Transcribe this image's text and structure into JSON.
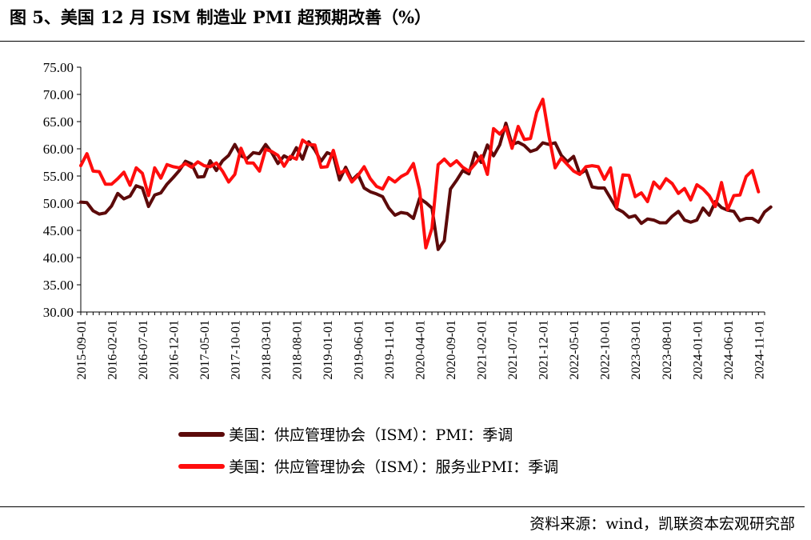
{
  "title": "图 5、美国 12 月 ISM 制造业 PMI 超预期改善（%）",
  "source": "资料来源：wind，凯联资本宏观研究部",
  "chart_data": {
    "type": "line",
    "ylim": [
      30,
      75
    ],
    "yticks": [
      "30.00",
      "35.00",
      "40.00",
      "45.00",
      "50.00",
      "55.00",
      "60.00",
      "65.00",
      "70.00",
      "75.00"
    ],
    "xticks": [
      "2015-09-01",
      "2016-02-01",
      "2016-07-01",
      "2016-12-01",
      "2017-05-01",
      "2017-10-01",
      "2018-03-01",
      "2018-08-01",
      "2019-01-01",
      "2019-06-01",
      "2019-11-01",
      "2020-04-01",
      "2020-09-01",
      "2021-02-01",
      "2021-07-01",
      "2021-12-01",
      "2022-05-01",
      "2022-10-01",
      "2023-03-01",
      "2023-08-01",
      "2024-01-01",
      "2024-06-01",
      "2024-11-01"
    ],
    "start": "2015-09",
    "end": "2024-12",
    "series": [
      {
        "name": "美国：供应管理协会（ISM）：PMI：季调",
        "color": "#5c0a0a",
        "values": [
          50.2,
          50.1,
          48.6,
          48.0,
          48.2,
          49.5,
          51.8,
          50.8,
          51.3,
          53.2,
          52.8,
          49.4,
          51.5,
          51.9,
          53.5,
          54.7,
          56.0,
          57.7,
          57.2,
          54.8,
          54.9,
          57.8,
          56.0,
          57.8,
          58.8,
          60.8,
          58.7,
          58.2,
          59.3,
          59.1,
          60.8,
          59.3,
          57.3,
          58.7,
          58.1,
          60.2,
          58.1,
          61.3,
          59.8,
          57.7,
          59.3,
          58.8,
          54.3,
          56.6,
          54.2,
          55.3,
          52.8,
          52.1,
          51.7,
          51.2,
          49.1,
          47.8,
          48.3,
          48.1,
          47.2,
          50.9,
          50.1,
          49.1,
          41.5,
          43.1,
          52.6,
          54.2,
          56.0,
          55.4,
          59.3,
          57.5,
          60.7,
          58.7,
          60.7,
          64.7,
          60.8,
          61.2,
          60.6,
          59.5,
          59.9,
          61.1,
          60.8,
          61.1,
          58.8,
          57.6,
          58.6,
          55.4,
          56.1,
          53.0,
          52.8,
          52.8,
          50.9,
          49.0,
          48.4,
          47.4,
          47.7,
          46.3,
          47.1,
          46.9,
          46.4,
          46.4,
          47.6,
          48.5,
          46.9,
          46.5,
          46.9,
          49.1,
          47.8,
          50.3,
          49.2,
          48.7,
          48.5,
          46.8,
          47.2,
          47.2,
          46.5,
          48.4,
          49.3
        ]
      },
      {
        "name": "美国：供应管理协会（ISM）：服务业PMI：季调",
        "color": "#ff0d0d",
        "values": [
          56.9,
          59.1,
          55.9,
          55.8,
          53.5,
          53.5,
          54.5,
          55.7,
          53.3,
          56.5,
          55.5,
          51.4,
          56.5,
          54.6,
          57.1,
          56.7,
          56.5,
          57.3,
          56.6,
          57.6,
          56.9,
          56.7,
          57.4,
          55.9,
          53.9,
          55.3,
          60.1,
          57.4,
          57.4,
          55.9,
          59.9,
          59.5,
          58.8,
          56.8,
          58.6,
          58.1,
          61.6,
          60.8,
          60.7,
          56.6,
          56.7,
          59.7,
          55.5,
          56.1,
          53.9,
          55.1,
          56.7,
          54.5,
          53.1,
          52.6,
          54.7,
          53.9,
          54.9,
          55.5,
          57.3,
          52.5,
          41.8,
          45.4,
          57.1,
          58.1,
          56.9,
          57.8,
          56.6,
          55.9,
          57.2,
          58.7,
          55.3,
          63.7,
          62.7,
          64.0,
          60.1,
          64.1,
          61.7,
          61.9,
          66.7,
          69.1,
          62.3,
          56.5,
          58.3,
          57.1,
          55.9,
          55.3,
          56.7,
          56.9,
          56.7,
          54.4,
          56.5,
          49.2,
          55.2,
          55.1,
          51.2,
          51.9,
          50.3,
          53.9,
          52.7,
          54.5,
          53.6,
          51.8,
          52.7,
          50.6,
          53.4,
          52.6,
          51.4,
          49.4,
          53.8,
          48.8,
          51.4,
          51.5,
          54.9,
          56.0,
          52.1
        ]
      }
    ],
    "legend_position": "bottom"
  }
}
